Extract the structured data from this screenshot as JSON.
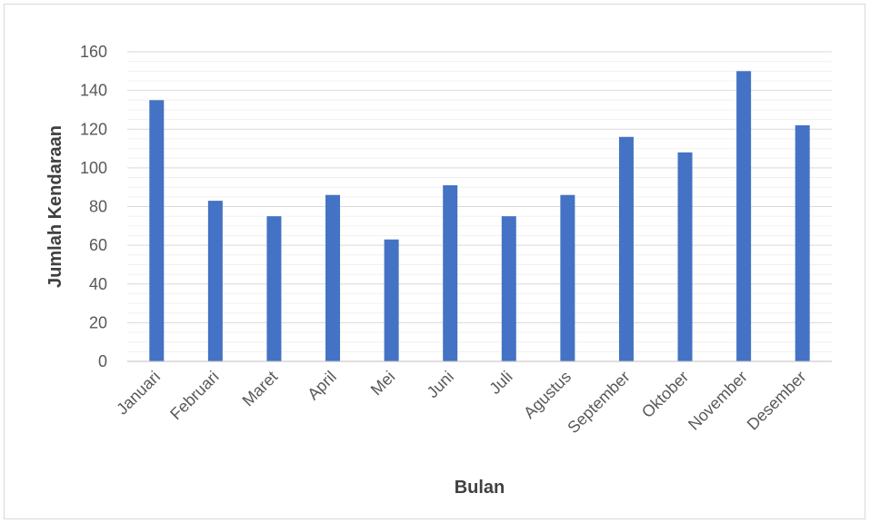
{
  "chart_data": {
    "type": "bar",
    "title": "",
    "xlabel": "Bulan",
    "ylabel": "Jumlah Kendaraan",
    "ylim": [
      0,
      160
    ],
    "yticks": [
      0,
      20,
      40,
      60,
      80,
      100,
      120,
      140,
      160
    ],
    "minor_grid_step": 5,
    "grid": true,
    "legend": "none",
    "bar_color": "#4472c4",
    "categories": [
      "Januari",
      "Februari",
      "Maret",
      "April",
      "Mei",
      "Juni",
      "Juli",
      "Agustus",
      "September",
      "Oktober",
      "November",
      "Desember"
    ],
    "values": [
      135,
      83,
      75,
      86,
      63,
      91,
      75,
      86,
      116,
      108,
      150,
      122
    ]
  }
}
